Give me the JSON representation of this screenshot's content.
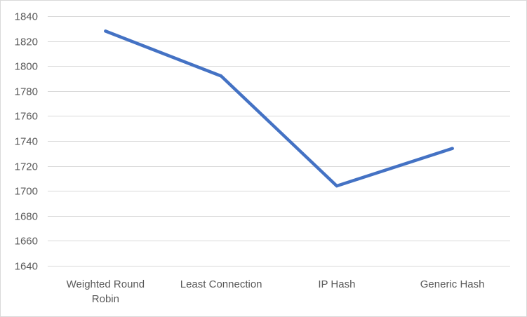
{
  "chart_data": {
    "type": "line",
    "title": "",
    "xlabel": "",
    "ylabel": "",
    "categories": [
      [
        "Weighted Round",
        "Robin"
      ],
      [
        "Least Connection"
      ],
      [
        "IP Hash"
      ],
      [
        "Generic Hash"
      ]
    ],
    "series": [
      {
        "values": [
          1828,
          1792,
          1704,
          1734
        ],
        "color": "#4472c4"
      }
    ],
    "ylim": [
      1640,
      1840
    ],
    "yticks": [
      1640,
      1660,
      1680,
      1700,
      1720,
      1740,
      1760,
      1780,
      1800,
      1820,
      1840
    ],
    "grid": true,
    "gridColor": "#d9d9d9",
    "legend": "none"
  }
}
